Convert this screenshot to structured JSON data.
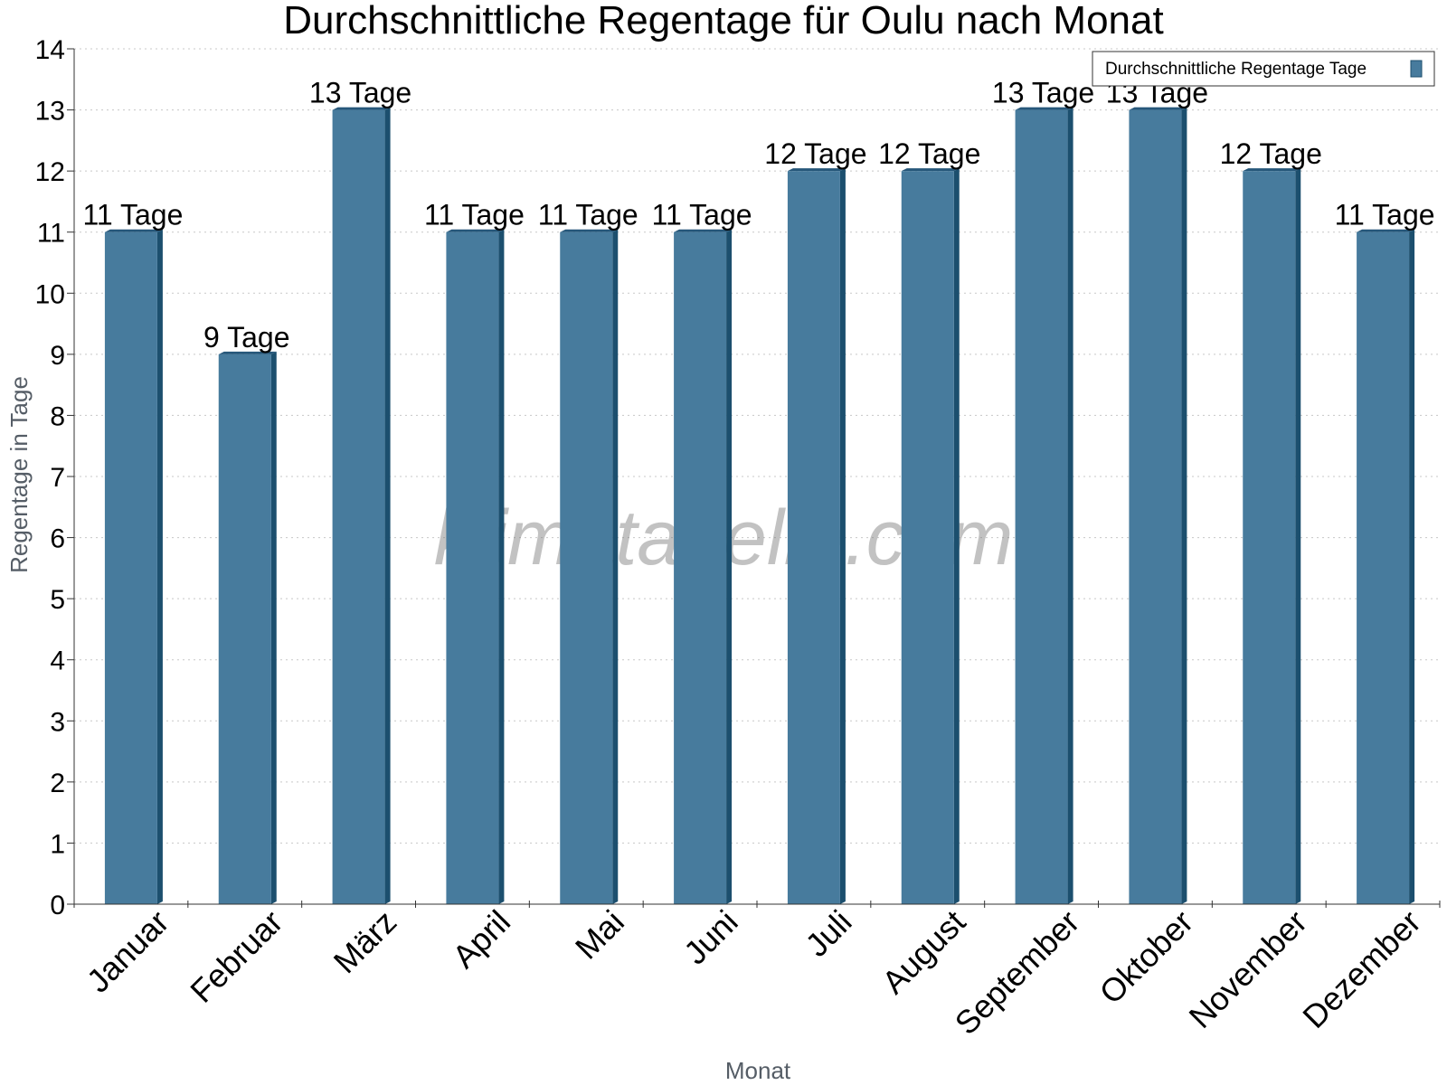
{
  "chart_data": {
    "type": "bar",
    "title": "Durchschnittliche Regentage für Oulu nach Monat",
    "xlabel": "Monat",
    "ylabel": "Regentage in Tage",
    "ylim": [
      0,
      14
    ],
    "yticks": [
      "0",
      "1",
      "2",
      "3",
      "4",
      "5",
      "6",
      "7",
      "8",
      "9",
      "10",
      "11",
      "12",
      "13",
      "14"
    ],
    "grid": true,
    "legend_position": "top-right",
    "categories": [
      "Januar",
      "Februar",
      "März",
      "April",
      "Mai",
      "Juni",
      "Juli",
      "August",
      "September",
      "Oktober",
      "November",
      "Dezember"
    ],
    "series": [
      {
        "name": "Durchschnittliche Regentage Tage",
        "values": [
          11,
          9,
          13,
          11,
          11,
          11,
          12,
          12,
          13,
          13,
          12,
          11
        ],
        "labels": [
          "11 Tage",
          "9 Tage",
          "13 Tage",
          "11 Tage",
          "11 Tage",
          "11 Tage",
          "12 Tage",
          "12 Tage",
          "13 Tage",
          "13 Tage",
          "12 Tage",
          "11 Tage"
        ]
      }
    ],
    "colors": {
      "bar": "#477b9d",
      "bar_side": "#1c4f6e",
      "bar_top": "#26577a",
      "grid": "#c8c8c8",
      "axis": "#333333"
    }
  },
  "watermark": "klimatabelle.com"
}
